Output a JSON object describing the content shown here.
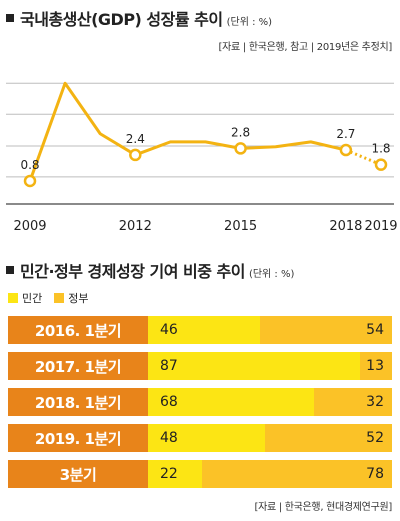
{
  "colors": {
    "line": "#f3b312",
    "private": "#fce514",
    "government": "#fbc227",
    "label_bg": "#e8841a"
  },
  "chart_data": [
    {
      "type": "line",
      "title": "국내총생산(GDP) 성장률 추이",
      "unit_note": "(단위 : %)",
      "source": "[자료 | 한국은행, 참고 | 2019년은 추정치]",
      "x_ticks": [
        "2009",
        "2012",
        "2015",
        "2018",
        "2019"
      ],
      "xlim": [
        2009,
        2019
      ],
      "ylim": [
        0,
        7
      ],
      "grid": true,
      "series": [
        {
          "x": [
            2009,
            2010,
            2011,
            2012,
            2013,
            2014,
            2015,
            2016,
            2017,
            2018,
            2019
          ],
          "y": [
            0.8,
            6.8,
            3.7,
            2.4,
            3.2,
            3.2,
            2.8,
            2.9,
            3.2,
            2.7,
            1.8
          ]
        }
      ],
      "estimate_from": 2018,
      "point_labels": [
        {
          "x": 2009,
          "y": 0.8,
          "text": "0.8"
        },
        {
          "x": 2012,
          "y": 2.4,
          "text": "2.4"
        },
        {
          "x": 2015,
          "y": 2.8,
          "text": "2.8"
        },
        {
          "x": 2018,
          "y": 2.7,
          "text": "2.7"
        },
        {
          "x": 2019,
          "y": 1.8,
          "text": "1.8"
        }
      ]
    },
    {
      "type": "bar",
      "stacked": "percent",
      "title": "민간·정부 경제성장 기여 비중 추이",
      "unit_note": "(단위 : %)",
      "source": "[자료 | 한국은행, 현대경제연구원]",
      "categories": [
        "2016. 1분기",
        "2017. 1분기",
        "2018. 1분기",
        "2019. 1분기",
        "3분기"
      ],
      "series": [
        {
          "name": "민간",
          "values": [
            46,
            87,
            68,
            48,
            22
          ]
        },
        {
          "name": "정부",
          "values": [
            54,
            13,
            32,
            52,
            78
          ]
        }
      ]
    }
  ]
}
